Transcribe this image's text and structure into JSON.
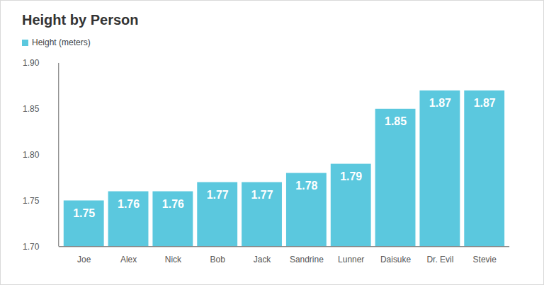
{
  "chart_data": {
    "type": "bar",
    "title": "Height by Person",
    "categories": [
      "Joe",
      "Alex",
      "Nick",
      "Bob",
      "Jack",
      "Sandrine",
      "Lunner",
      "Daisuke",
      "Dr. Evil",
      "Stevie"
    ],
    "series": [
      {
        "name": "Height (meters)",
        "color": "#5bc8de",
        "values": [
          1.75,
          1.76,
          1.76,
          1.77,
          1.77,
          1.78,
          1.79,
          1.85,
          1.87,
          1.87
        ]
      }
    ],
    "ylim": [
      1.7,
      1.9
    ],
    "yticks": [
      {
        "value": 1.7,
        "label": "1.70"
      },
      1.75,
      {
        "value": 1.8,
        "label": "1.80"
      },
      1.85,
      {
        "value": 1.9,
        "label": "1.90"
      }
    ],
    "grid": false,
    "legend": "top-left",
    "data_labels": true
  }
}
